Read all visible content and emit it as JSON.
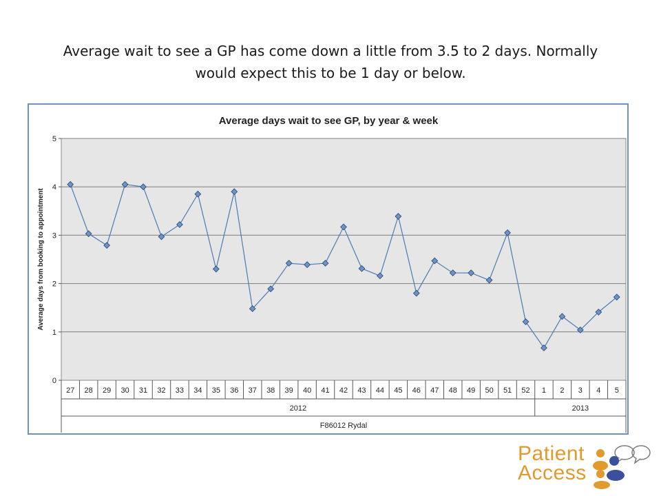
{
  "slide": {
    "title_line1": "Average wait to see a GP has come down a little from 3.5 to 2 days.  Normally",
    "title_line2": "would expect this to be 1 day or below."
  },
  "logo": {
    "line1": "Patient",
    "line2": "Access"
  },
  "colors": {
    "plot_bg": "#e6e6e6",
    "series": "#4a7ab5",
    "marker_fill": "#6f93c4",
    "marker_stroke": "#2e4f7a",
    "frame": "#6f90b8",
    "logo_orange": "#e09a2e",
    "logo_blue": "#3b4f9c"
  },
  "chart_data": {
    "type": "line",
    "title": "Average days wait to see GP, by year & week",
    "ylabel": "Average days from booking to appointment",
    "xlabel": "F86012 Rydal",
    "ylim": [
      0,
      5
    ],
    "yticks": [
      0,
      1,
      2,
      3,
      4,
      5
    ],
    "grid": true,
    "categories": [
      "27",
      "28",
      "29",
      "30",
      "31",
      "32",
      "33",
      "34",
      "35",
      "36",
      "37",
      "38",
      "39",
      "40",
      "41",
      "42",
      "43",
      "44",
      "45",
      "46",
      "47",
      "48",
      "49",
      "50",
      "51",
      "52",
      "1",
      "2",
      "3",
      "4",
      "5"
    ],
    "groups": [
      {
        "label": "2012",
        "count": 26
      },
      {
        "label": "2013",
        "count": 5
      }
    ],
    "series": [
      {
        "values": [
          4.05,
          3.03,
          2.79,
          4.05,
          4.0,
          2.97,
          3.22,
          3.85,
          2.3,
          3.9,
          1.48,
          1.89,
          2.42,
          2.39,
          2.42,
          3.17,
          2.31,
          2.16,
          3.39,
          1.8,
          2.47,
          2.22,
          2.22,
          2.07,
          3.05,
          1.21,
          0.67,
          1.32,
          1.04,
          1.41,
          1.72
        ]
      }
    ]
  }
}
